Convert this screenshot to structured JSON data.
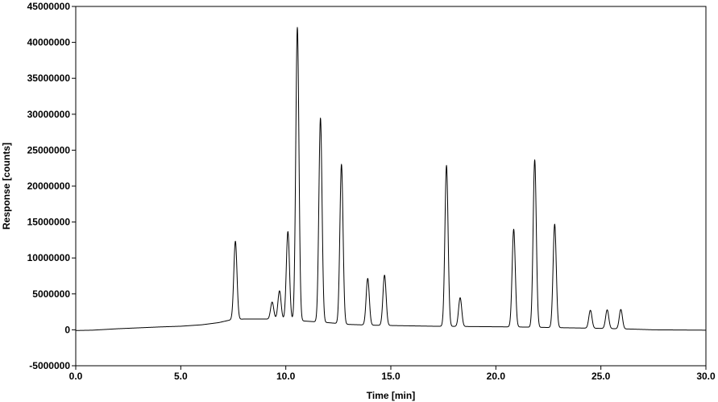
{
  "chart_data": {
    "type": "line",
    "title": "",
    "xlabel": "Time [min]",
    "ylabel": "Response [counts]",
    "xlim": [
      0,
      30
    ],
    "ylim": [
      -5000000,
      45000000
    ],
    "x_ticks": [
      0,
      5,
      10,
      15,
      20,
      25,
      30
    ],
    "x_tick_labels": [
      "0.0",
      "5.0",
      "10.0",
      "15.0",
      "20.0",
      "25.0",
      "30.0"
    ],
    "y_ticks": [
      -5000000,
      0,
      5000000,
      10000000,
      15000000,
      20000000,
      25000000,
      30000000,
      35000000,
      40000000,
      45000000
    ],
    "y_tick_labels": [
      "-5000000",
      "0",
      "5000000",
      "10000000",
      "15000000",
      "20000000",
      "25000000",
      "30000000",
      "35000000",
      "40000000",
      "45000000"
    ],
    "grid": false,
    "line_color": "#000000",
    "series": [
      {
        "peaks": [
          {
            "rt": 7.6,
            "height": 10900000
          },
          {
            "rt": 9.35,
            "height": 2400000
          },
          {
            "rt": 9.7,
            "height": 4000000
          },
          {
            "rt": 10.1,
            "height": 12300000
          },
          {
            "rt": 10.55,
            "height": 40800000
          },
          {
            "rt": 11.65,
            "height": 28400000
          },
          {
            "rt": 12.65,
            "height": 22200000
          },
          {
            "rt": 13.9,
            "height": 6500000
          },
          {
            "rt": 14.7,
            "height": 7000000
          },
          {
            "rt": 17.65,
            "height": 22400000
          },
          {
            "rt": 18.3,
            "height": 4000000
          },
          {
            "rt": 20.85,
            "height": 13600000
          },
          {
            "rt": 21.85,
            "height": 23300000
          },
          {
            "rt": 22.8,
            "height": 14400000
          },
          {
            "rt": 24.5,
            "height": 2500000
          },
          {
            "rt": 25.3,
            "height": 2600000
          },
          {
            "rt": 25.95,
            "height": 2700000
          }
        ],
        "baseline": [
          {
            "x": 0.0,
            "y": -100000
          },
          {
            "x": 0.8,
            "y": -50000
          },
          {
            "x": 2.0,
            "y": 150000
          },
          {
            "x": 4.0,
            "y": 400000
          },
          {
            "x": 5.0,
            "y": 500000
          },
          {
            "x": 6.0,
            "y": 700000
          },
          {
            "x": 6.8,
            "y": 1000000
          },
          {
            "x": 7.4,
            "y": 1400000
          },
          {
            "x": 8.0,
            "y": 1500000
          },
          {
            "x": 9.0,
            "y": 1500000
          },
          {
            "x": 10.0,
            "y": 1400000
          },
          {
            "x": 11.0,
            "y": 1200000
          },
          {
            "x": 12.0,
            "y": 1000000
          },
          {
            "x": 13.0,
            "y": 750000
          },
          {
            "x": 14.0,
            "y": 650000
          },
          {
            "x": 15.0,
            "y": 600000
          },
          {
            "x": 17.0,
            "y": 500000
          },
          {
            "x": 19.0,
            "y": 450000
          },
          {
            "x": 21.0,
            "y": 400000
          },
          {
            "x": 23.0,
            "y": 300000
          },
          {
            "x": 25.0,
            "y": 200000
          },
          {
            "x": 26.5,
            "y": 100000
          },
          {
            "x": 27.5,
            "y": 0
          },
          {
            "x": 30.0,
            "y": -50000
          }
        ]
      }
    ]
  }
}
